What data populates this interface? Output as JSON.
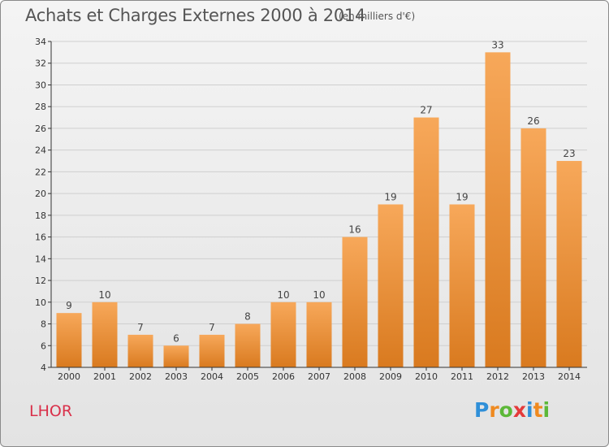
{
  "header": {
    "title": "Achats et Charges Externes 2000 à 2014",
    "subtitle": "(en milliers d'€)"
  },
  "commune": "LHOR",
  "logo": {
    "letters": [
      "P",
      "r",
      "o",
      "x",
      "i",
      "t",
      "i"
    ],
    "colors": [
      "#2f8fd8",
      "#ef8a20",
      "#5cb838",
      "#e43a3a",
      "#2f8fd8",
      "#ef8a20",
      "#5cb838"
    ]
  },
  "colors": {
    "bar_top": "#f7a85a",
    "bar_bottom": "#d97a1f",
    "accent": "#d9304a"
  },
  "chart_data": {
    "type": "bar",
    "title": "Achats et Charges Externes 2000 à 2014",
    "subtitle": "(en milliers d'€)",
    "xlabel": "",
    "ylabel": "",
    "categories": [
      "2000",
      "2001",
      "2002",
      "2003",
      "2004",
      "2005",
      "2006",
      "2007",
      "2008",
      "2009",
      "2010",
      "2011",
      "2012",
      "2013",
      "2014"
    ],
    "values": [
      9,
      10,
      7,
      6,
      7,
      8,
      10,
      10,
      16,
      19,
      27,
      19,
      33,
      26,
      23
    ],
    "ylim": [
      4,
      34
    ],
    "yticks": [
      4,
      6,
      8,
      10,
      12,
      14,
      16,
      18,
      20,
      22,
      24,
      26,
      28,
      30,
      32,
      34
    ],
    "grid": true,
    "data_labels": true
  }
}
